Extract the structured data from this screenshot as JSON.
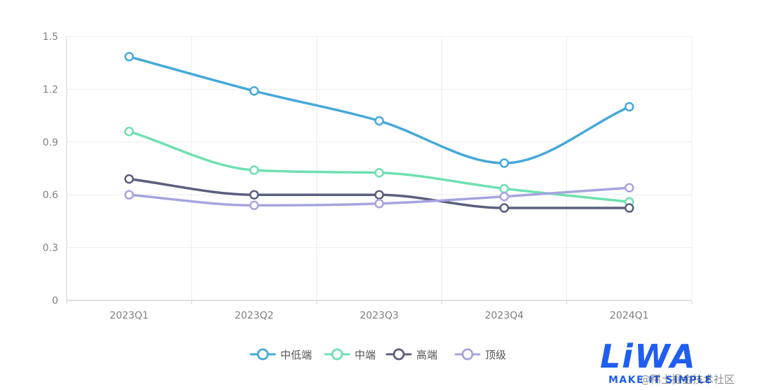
{
  "chart_data": {
    "type": "line",
    "smooth": true,
    "categories": [
      "2023Q1",
      "2023Q2",
      "2023Q3",
      "2023Q4",
      "2024Q1"
    ],
    "ylim": [
      0,
      1.5
    ],
    "yticks": [
      0,
      0.3,
      0.6,
      0.9,
      1.2,
      1.5
    ],
    "ytick_labels": [
      "0",
      "0.3",
      "0.6",
      "0.9",
      "1.2",
      "1.5"
    ],
    "grid": true,
    "legend_position": "bottom-center",
    "series": [
      {
        "name": "中低端",
        "color": "#45a9d8",
        "values": [
          1.385,
          1.19,
          1.02,
          0.78,
          1.1
        ]
      },
      {
        "name": "中端",
        "color": "#6ee0b0",
        "values": [
          0.96,
          0.74,
          0.725,
          0.635,
          0.56
        ]
      },
      {
        "name": "高端",
        "color": "#5b5f7e",
        "values": [
          0.69,
          0.6,
          0.6,
          0.525,
          0.525
        ]
      },
      {
        "name": "顶级",
        "color": "#a6a4de",
        "values": [
          0.6,
          0.54,
          0.55,
          0.59,
          0.64
        ]
      }
    ]
  },
  "logo": {
    "brand": "LiWA",
    "tagline": "MAKE IT SIMPLE",
    "color": "#1f5ef0"
  },
  "watermark": {
    "text": "@稀土掘金技术社区"
  }
}
